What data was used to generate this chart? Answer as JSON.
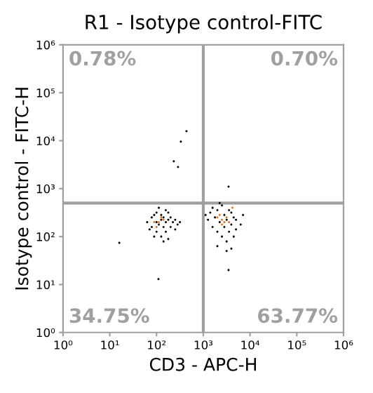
{
  "chart_data": {
    "type": "scatter",
    "title": "R1 - Isotype control-FITC",
    "xlabel": "CD3 - APC-H",
    "ylabel": "Isotype control - FITC-H",
    "log": "xy",
    "grid": false,
    "marker": "circle",
    "legend": false,
    "xlim": [
      1,
      1000000
    ],
    "ylim": [
      1,
      1000000
    ],
    "xticks": [
      {
        "value": 1,
        "label": "10⁰"
      },
      {
        "value": 10,
        "label": "10¹"
      },
      {
        "value": 100,
        "label": "10²"
      },
      {
        "value": 1000,
        "label": "10³"
      },
      {
        "value": 10000,
        "label": "10⁴"
      },
      {
        "value": 100000,
        "label": "10⁵"
      },
      {
        "value": 1000000,
        "label": "10⁶"
      }
    ],
    "yticks": [
      {
        "value": 1,
        "label": "10⁰"
      },
      {
        "value": 10,
        "label": "10¹"
      },
      {
        "value": 100,
        "label": "10²"
      },
      {
        "value": 1000,
        "label": "10³"
      },
      {
        "value": 10000,
        "label": "10⁴"
      },
      {
        "value": 100000,
        "label": "10⁵"
      },
      {
        "value": 1000000,
        "label": "10⁶"
      }
    ],
    "ref_lines": [
      {
        "axis": "x",
        "value": 1000,
        "color": "#a0a0a0"
      },
      {
        "axis": "y",
        "value": 500,
        "color": "#a0a0a0"
      }
    ],
    "annotations": [
      "0.78%",
      "0.70%",
      "34.75%",
      "63.77%"
    ],
    "series": [
      {
        "color": "#000000",
        "x": [
          63,
          79,
          79,
          100,
          100,
          100,
          112,
          126,
          126,
          126,
          141,
          141,
          158,
          158,
          178,
          178,
          200,
          200,
          224,
          251,
          251,
          89,
          71,
          112,
          141,
          178,
          282,
          316,
          89,
          158,
          16,
          110,
          437,
          331,
          234,
          288,
          1260,
          1410,
          1580,
          1580,
          1780,
          2000,
          2000,
          2240,
          2510,
          2510,
          2820,
          2820,
          3160,
          3160,
          3550,
          3550,
          3980,
          3980,
          4470,
          5010,
          5010,
          6310,
          2000,
          3160,
          3470,
          1120,
          2240,
          4470,
          3980,
          7080,
          3470
        ],
        "values": [
          200,
          158,
          251,
          126,
          200,
          316,
          178,
          100,
          224,
          282,
          158,
          251,
          200,
          126,
          224,
          316,
          158,
          251,
          200,
          141,
          224,
          100,
          141,
          398,
          79,
          89,
          178,
          200,
          282,
          355,
          74,
          13,
          15800,
          9550,
          3720,
          2820,
          224,
          316,
          158,
          398,
          251,
          126,
          355,
          200,
          100,
          447,
          158,
          282,
          79,
          224,
          126,
          355,
          178,
          316,
          251,
          141,
          224,
          178,
          63,
          50,
          20,
          282,
          501,
          100,
          56,
          282,
          1100
        ]
      },
      {
        "color": "#e8742a",
        "x": [
          112,
          89,
          141,
          100,
          126,
          2000,
          2510,
          2820,
          3160,
          2240,
          3550,
          4200,
          2510
        ],
        "values": [
          200,
          200,
          224,
          158,
          251,
          251,
          224,
          200,
          251,
          282,
          200,
          400,
          178
        ]
      }
    ]
  }
}
